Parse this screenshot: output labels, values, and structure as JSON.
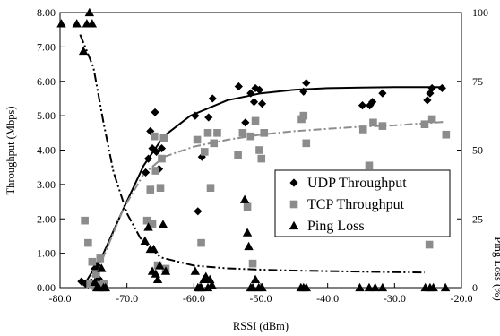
{
  "chart_data": {
    "type": "scatter",
    "title": "",
    "xlabel": "RSSI (dBm)",
    "ylabel": "Throughput (Mbps)",
    "y2label": "Ping Loss (%)",
    "xlim": [
      -80,
      -20
    ],
    "ylim": [
      0,
      8
    ],
    "y2lim": [
      0,
      100
    ],
    "x_ticks": [
      "-80.0",
      "-70.0",
      "-60.0",
      "-50.0",
      "-40.0",
      "-30.0",
      "-20.0"
    ],
    "y_ticks": [
      "0.00",
      "1.00",
      "2.00",
      "3.00",
      "4.00",
      "5.00",
      "6.00",
      "7.00",
      "8.00"
    ],
    "y2_ticks": [
      "0",
      "25",
      "50",
      "75",
      "100"
    ],
    "grid": false,
    "legend_position": "lower-right",
    "colors": {
      "udp": "#000000",
      "tcp": "#8c8c8c",
      "ping": "#000000"
    },
    "series": [
      {
        "name": "UDP Throughput",
        "marker": "diamond",
        "axis": "left",
        "points": [
          [
            -76.8,
            0.18
          ],
          [
            -76.2,
            0.12
          ],
          [
            -75.8,
            0.08
          ],
          [
            -75.3,
            0.15
          ],
          [
            -74.8,
            0.55
          ],
          [
            -74.5,
            0.65
          ],
          [
            -74.2,
            0.25
          ],
          [
            -67.2,
            3.35
          ],
          [
            -66.8,
            3.75
          ],
          [
            -66.5,
            4.55
          ],
          [
            -66.2,
            4.05
          ],
          [
            -65.8,
            5.1
          ],
          [
            -65.6,
            3.95
          ],
          [
            -65.2,
            3.45
          ],
          [
            -64.8,
            4.05
          ],
          [
            -59.8,
            5.0
          ],
          [
            -59.4,
            2.22
          ],
          [
            -58.8,
            3.8
          ],
          [
            -57.8,
            4.95
          ],
          [
            -57.2,
            5.5
          ],
          [
            -53.3,
            5.85
          ],
          [
            -52.3,
            4.8
          ],
          [
            -51.5,
            5.65
          ],
          [
            -51.0,
            5.4
          ],
          [
            -50.8,
            5.8
          ],
          [
            -50.2,
            5.75
          ],
          [
            -49.8,
            5.35
          ],
          [
            -43.6,
            5.7
          ],
          [
            -43.2,
            5.95
          ],
          [
            -34.8,
            5.3
          ],
          [
            -33.7,
            5.3
          ],
          [
            -33.3,
            5.4
          ],
          [
            -31.8,
            5.65
          ],
          [
            -25.1,
            5.45
          ],
          [
            -24.7,
            5.65
          ],
          [
            -24.4,
            5.8
          ],
          [
            -22.9,
            5.8
          ]
        ]
      },
      {
        "name": "TCP Throughput",
        "marker": "square",
        "axis": "left",
        "points": [
          [
            -76.3,
            1.95
          ],
          [
            -75.8,
            1.3
          ],
          [
            -75.5,
            0.1
          ],
          [
            -75.2,
            0.75
          ],
          [
            -74.9,
            0.05
          ],
          [
            -74.6,
            0.4
          ],
          [
            -74.3,
            0.08
          ],
          [
            -74.0,
            0.85
          ],
          [
            -73.7,
            0.05
          ],
          [
            -73.4,
            0.12
          ],
          [
            -67.0,
            1.95
          ],
          [
            -66.5,
            2.85
          ],
          [
            -66.2,
            1.85
          ],
          [
            -65.9,
            4.4
          ],
          [
            -65.7,
            3.4
          ],
          [
            -65.4,
            0.65
          ],
          [
            -65.0,
            2.9
          ],
          [
            -64.8,
            3.75
          ],
          [
            -64.5,
            4.35
          ],
          [
            -64.2,
            0.55
          ],
          [
            -59.5,
            4.3
          ],
          [
            -58.9,
            1.3
          ],
          [
            -58.4,
            3.95
          ],
          [
            -57.9,
            4.5
          ],
          [
            -57.5,
            2.9
          ],
          [
            -57.0,
            4.2
          ],
          [
            -56.5,
            4.5
          ],
          [
            -53.4,
            3.85
          ],
          [
            -52.7,
            4.5
          ],
          [
            -52.0,
            2.35
          ],
          [
            -51.5,
            4.4
          ],
          [
            -51.2,
            0.7
          ],
          [
            -50.8,
            4.85
          ],
          [
            -50.2,
            4.0
          ],
          [
            -49.9,
            3.75
          ],
          [
            -49.5,
            4.5
          ],
          [
            -43.9,
            4.9
          ],
          [
            -43.6,
            5.0
          ],
          [
            -43.2,
            4.2
          ],
          [
            -34.7,
            4.6
          ],
          [
            -33.8,
            3.55
          ],
          [
            -33.2,
            4.8
          ],
          [
            -31.8,
            4.7
          ],
          [
            -25.5,
            4.75
          ],
          [
            -24.8,
            1.25
          ],
          [
            -24.4,
            4.9
          ],
          [
            -22.3,
            4.45
          ]
        ]
      },
      {
        "name": "Ping Loss",
        "marker": "triangle",
        "axis": "right",
        "points": [
          [
            -79.8,
            96
          ],
          [
            -77.5,
            96
          ],
          [
            -76.5,
            86
          ],
          [
            -76.0,
            96
          ],
          [
            -75.6,
            100
          ],
          [
            -75.2,
            96
          ],
          [
            -74.8,
            2
          ],
          [
            -74.5,
            0
          ],
          [
            -74.2,
            0
          ],
          [
            -73.8,
            7
          ],
          [
            -73.5,
            0
          ],
          [
            -73.2,
            0
          ],
          [
            -67.3,
            17
          ],
          [
            -66.8,
            22
          ],
          [
            -66.5,
            14
          ],
          [
            -66.2,
            6
          ],
          [
            -66.0,
            14
          ],
          [
            -65.7,
            5
          ],
          [
            -65.4,
            3
          ],
          [
            -65.1,
            8
          ],
          [
            -64.6,
            23
          ],
          [
            -64.2,
            6
          ],
          [
            -59.8,
            6
          ],
          [
            -59.4,
            0
          ],
          [
            -59.1,
            0
          ],
          [
            -58.9,
            0
          ],
          [
            -58.5,
            3
          ],
          [
            -58.2,
            4
          ],
          [
            -57.9,
            0
          ],
          [
            -57.6,
            3
          ],
          [
            -57.3,
            1
          ],
          [
            -52.4,
            32
          ],
          [
            -52.0,
            20
          ],
          [
            -51.8,
            15
          ],
          [
            -51.5,
            0
          ],
          [
            -51.2,
            0
          ],
          [
            -50.8,
            3
          ],
          [
            -50.3,
            0
          ],
          [
            -49.8,
            0
          ],
          [
            -44.0,
            0
          ],
          [
            -43.6,
            0
          ],
          [
            -43.2,
            0
          ],
          [
            -35.2,
            0
          ],
          [
            -33.8,
            0
          ],
          [
            -32.9,
            0
          ],
          [
            -31.8,
            0
          ],
          [
            -25.4,
            0
          ],
          [
            -24.7,
            0
          ],
          [
            -24.2,
            0
          ],
          [
            -22.4,
            0
          ]
        ]
      }
    ],
    "trendlines": [
      {
        "series": "UDP Throughput",
        "axis": "left",
        "style": "solid",
        "points": [
          [
            -76.5,
            0.05
          ],
          [
            -73.5,
            1.0
          ],
          [
            -70.5,
            2.3
          ],
          [
            -67.5,
            3.55
          ],
          [
            -64.5,
            4.4
          ],
          [
            -60.5,
            5.0
          ],
          [
            -55,
            5.45
          ],
          [
            -50,
            5.65
          ],
          [
            -45,
            5.75
          ],
          [
            -40,
            5.8
          ],
          [
            -35,
            5.82
          ],
          [
            -30,
            5.83
          ],
          [
            -22.5,
            5.83
          ]
        ]
      },
      {
        "series": "TCP Throughput",
        "axis": "left",
        "style": "dash-dot",
        "points": [
          [
            -76,
            0.05
          ],
          [
            -73.5,
            0.9
          ],
          [
            -70.5,
            2.3
          ],
          [
            -67.5,
            3.3
          ],
          [
            -64.5,
            3.8
          ],
          [
            -60,
            4.1
          ],
          [
            -55,
            4.3
          ],
          [
            -50,
            4.45
          ],
          [
            -45,
            4.55
          ],
          [
            -40,
            4.62
          ],
          [
            -35,
            4.68
          ],
          [
            -30,
            4.72
          ],
          [
            -22.5,
            4.82
          ]
        ]
      },
      {
        "series": "Ping Loss",
        "axis": "right",
        "style": "dash-dot-dot",
        "points": [
          [
            -77,
            92
          ],
          [
            -75,
            80
          ],
          [
            -73.5,
            60
          ],
          [
            -72,
            42
          ],
          [
            -70,
            27
          ],
          [
            -68,
            18
          ],
          [
            -65,
            11
          ],
          [
            -60,
            8
          ],
          [
            -55,
            7
          ],
          [
            -50,
            6.5
          ],
          [
            -45,
            6.2
          ],
          [
            -40,
            6
          ],
          [
            -35,
            5.8
          ],
          [
            -30,
            5.6
          ],
          [
            -25.5,
            5.5
          ]
        ]
      }
    ],
    "legend": [
      {
        "label": "UDP Throughput",
        "marker": "diamond"
      },
      {
        "label": "TCP Throughput",
        "marker": "square"
      },
      {
        "label": "Ping Loss",
        "marker": "triangle"
      }
    ]
  }
}
